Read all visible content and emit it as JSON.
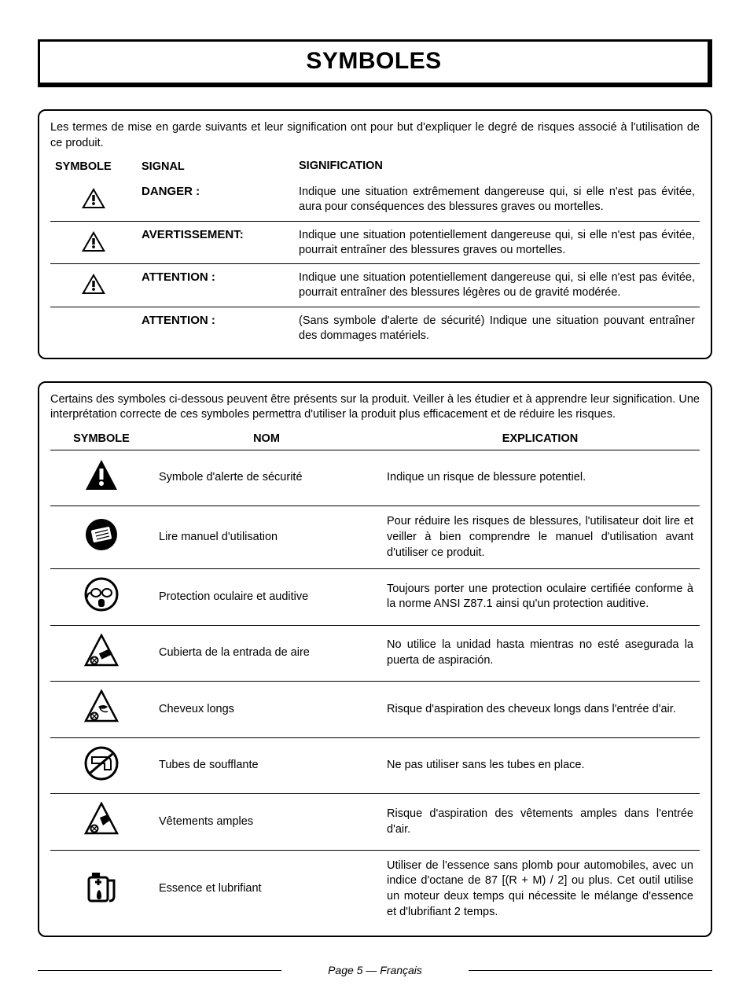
{
  "page_title": "SYMBOLES",
  "footer": "Page 5 — Français",
  "signal_panel": {
    "intro": "Les termes de mise en garde suivants et leur signification ont pour but d'expliquer le degré de risques associé à l'utilisation de ce produit.",
    "headers": {
      "symbole": "SYMBOLE",
      "signal": "SIGNAL",
      "signification": "SIGNIFICATION"
    },
    "rows": [
      {
        "has_icon": true,
        "signal": "DANGER :",
        "meaning": "Indique une situation extrêmement dangereuse qui, si elle n'est pas évitée, aura pour conséquences des blessures graves ou mortelles."
      },
      {
        "has_icon": true,
        "signal": "AVERTISSEMENT:",
        "meaning": "Indique une situation potentiellement dangereuse qui, si elle n'est pas évitée, pourrait entraîner des blessures graves ou mortelles."
      },
      {
        "has_icon": true,
        "signal": "ATTENTION :",
        "meaning": "Indique une situation potentiellement dangereuse qui, si elle n'est pas évitée, pourrait entraîner des blessures légères ou de gravité modérée."
      },
      {
        "has_icon": false,
        "signal": "ATTENTION :",
        "meaning": "(Sans symbole d'alerte de sécurité) Indique une situation pouvant entraîner des dommages matériels."
      }
    ]
  },
  "symbols_panel": {
    "intro": "Certains des symboles ci-dessous peuvent être présents sur la produit. Veiller à les étudier et à apprendre leur signification. Une interprétation correcte de ces symboles permettra d'utiliser la produit plus efficacement et de réduire les risques.",
    "headers": {
      "symbole": "SYMBOLE",
      "nom": "NOM",
      "explication": "EXPLICATION"
    },
    "rows": [
      {
        "icon": "alert",
        "name": "Symbole d'alerte de sécurité",
        "exp": "Indique un risque de blessure potentiel."
      },
      {
        "icon": "manual",
        "name": "Lire manuel d'utilisation",
        "exp": "Pour réduire les risques de blessures, l'utilisateur doit lire et veiller à bien comprendre le manuel d'utilisation avant d'utiliser ce produit."
      },
      {
        "icon": "eyeear",
        "name": "Protection oculaire et auditive",
        "exp": "Toujours porter une protection oculaire certifiée conforme à la norme ANSI Z87.1 ainsi qu'un protection auditive."
      },
      {
        "icon": "intake",
        "name": "Cubierta de la entrada de aire",
        "exp": "No utilice la unidad hasta mientras no esté asegurada la puerta de aspiración."
      },
      {
        "icon": "hair",
        "name": "Cheveux longs",
        "exp": "Risque d'aspiration des cheveux longs dans l'entrée d'air."
      },
      {
        "icon": "tubes",
        "name": "Tubes de soufflante",
        "exp": "Ne pas utiliser sans les tubes en place."
      },
      {
        "icon": "cloth",
        "name": "Vêtements amples",
        "exp": "Risque d'aspiration des vêtements amples dans l'entrée d'air."
      },
      {
        "icon": "fuel",
        "name": "Essence et lubrifiant",
        "exp": "Utiliser de l'essence sans plomb pour automobiles, avec un indice d'octane de 87 [(R + M) / 2] ou plus. Cet outil utilise un moteur deux temps qui nécessite le mélange d'essence et d'lubrifiant 2 temps."
      }
    ]
  }
}
